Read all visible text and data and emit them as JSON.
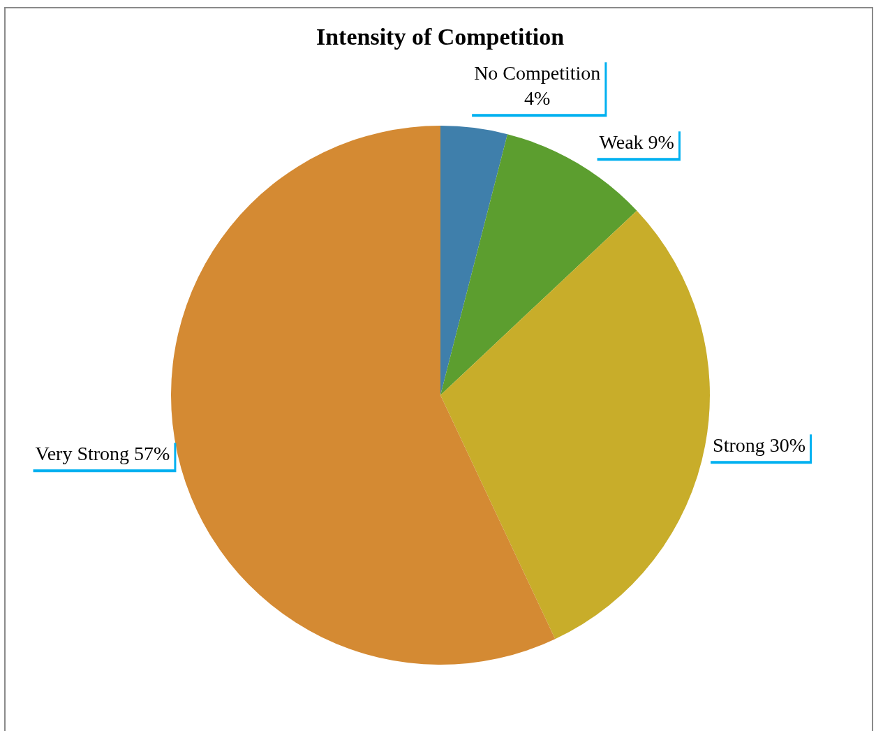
{
  "chart_data": {
    "type": "pie",
    "title": "Intensity of Competition",
    "categories": [
      "No Competition",
      "Weak",
      "Strong",
      "Very Strong"
    ],
    "values": [
      4,
      9,
      30,
      57
    ],
    "value_labels": [
      "4%",
      "9%",
      "30%",
      "57%"
    ],
    "colors": [
      "#3f7fab",
      "#5c9e2f",
      "#c8ad2a",
      "#d48a33"
    ],
    "legend": false
  }
}
